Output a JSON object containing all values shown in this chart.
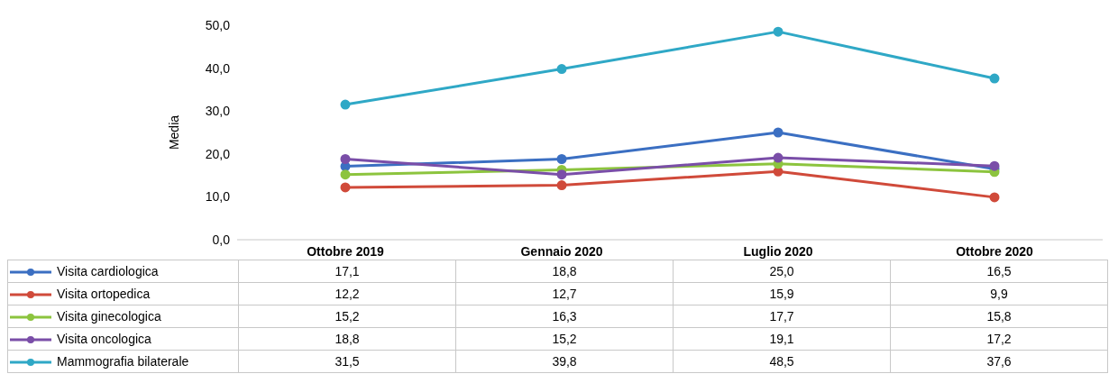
{
  "chart_data": {
    "type": "line",
    "ylabel": "Media",
    "categories": [
      "Ottobre 2019",
      "Gennaio 2020",
      "Luglio 2020",
      "Ottobre 2020"
    ],
    "series": [
      {
        "name": "Visita cardiologica",
        "color": "#3b6fc2",
        "values": [
          17.1,
          18.8,
          25.0,
          16.5
        ],
        "value_labels": [
          "17,1",
          "18,8",
          "25,0",
          "16,5"
        ]
      },
      {
        "name": "Visita ortopedica",
        "color": "#d04a3a",
        "values": [
          12.2,
          12.7,
          15.9,
          9.9
        ],
        "value_labels": [
          "12,2",
          "12,7",
          "15,9",
          "9,9"
        ]
      },
      {
        "name": "Visita ginecologica",
        "color": "#8cc43e",
        "values": [
          15.2,
          16.3,
          17.7,
          15.8
        ],
        "value_labels": [
          "15,2",
          "16,3",
          "17,7",
          "15,8"
        ]
      },
      {
        "name": "Visita oncologica",
        "color": "#7a4ea8",
        "values": [
          18.8,
          15.2,
          19.1,
          17.2
        ],
        "value_labels": [
          "18,8",
          "15,2",
          "19,1",
          "17,2"
        ]
      },
      {
        "name": "Mammografia bilaterale",
        "color": "#2fa8c6",
        "values": [
          31.5,
          39.8,
          48.5,
          37.6
        ],
        "value_labels": [
          "31,5",
          "39,8",
          "48,5",
          "37,6"
        ]
      }
    ],
    "ylim": [
      0,
      50
    ],
    "yticks": [
      {
        "value": 0,
        "label": "0,0"
      },
      {
        "value": 10,
        "label": "10,0"
      },
      {
        "value": 20,
        "label": "20,0"
      },
      {
        "value": 30,
        "label": "30,0"
      },
      {
        "value": 40,
        "label": "40,0"
      },
      {
        "value": 50,
        "label": "50,0"
      }
    ],
    "legend": "bottom",
    "marker": "circle",
    "line_style": "solid"
  }
}
